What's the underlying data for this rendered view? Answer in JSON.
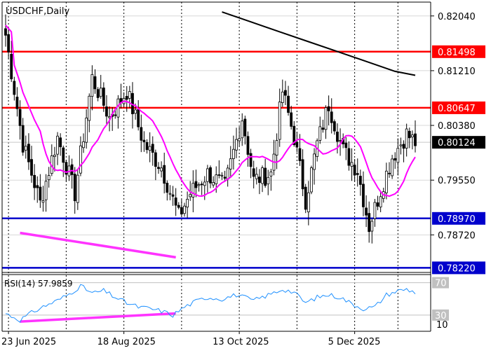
{
  "chart_data": [
    {
      "type": "candlestick",
      "title": "USDCHF,Daily",
      "colors": {
        "up": "#000000",
        "down": "#000000",
        "ma_slow": "#000000",
        "ma_fast": "#ff00ff",
        "resistance": "#ff0000",
        "support": "#0000cc",
        "divergence": "#ff33ff"
      },
      "y_range": [
        0.7815,
        0.8225
      ],
      "y_ticks": [
        "0.82040",
        "0.81210",
        "0.80380",
        "0.79550",
        "0.78720"
      ],
      "y_tick_values": [
        0.8204,
        0.8121,
        0.8038,
        0.7955,
        0.7872
      ],
      "x_tick_labels": [
        "23 Jun 2025",
        "18 Aug 2025",
        "13 Oct 2025",
        "5 Dec 2025"
      ],
      "x_tick_index": [
        1,
        41,
        81,
        121
      ],
      "bar_count": 143,
      "current_price": 0.80124,
      "current_price_label": "0.80124",
      "horizontal_levels": [
        {
          "value": 0.81498,
          "label": "0.81498",
          "color": "#ff0000"
        },
        {
          "value": 0.80647,
          "label": "0.80647",
          "color": "#ff0000"
        },
        {
          "value": 0.7897,
          "label": "0.78970",
          "color": "#0000cc"
        },
        {
          "value": 0.7822,
          "label": "0.78220",
          "color": "#0000cc"
        }
      ],
      "anchors": [
        [
          0,
          0.8175
        ],
        [
          6,
          0.801
        ],
        [
          12,
          0.792
        ],
        [
          18,
          0.802
        ],
        [
          24,
          0.7935
        ],
        [
          30,
          0.811
        ],
        [
          36,
          0.805
        ],
        [
          42,
          0.809
        ],
        [
          48,
          0.801
        ],
        [
          54,
          0.7975
        ],
        [
          60,
          0.79
        ],
        [
          64,
          0.7935
        ],
        [
          70,
          0.7965
        ],
        [
          76,
          0.7945
        ],
        [
          82,
          0.805
        ],
        [
          86,
          0.7955
        ],
        [
          92,
          0.7965
        ],
        [
          96,
          0.809
        ],
        [
          100,
          0.802
        ],
        [
          104,
          0.7925
        ],
        [
          108,
          0.801
        ],
        [
          112,
          0.807
        ],
        [
          117,
          0.8
        ],
        [
          122,
          0.797
        ],
        [
          126,
          0.7885
        ],
        [
          130,
          0.794
        ],
        [
          134,
          0.799
        ],
        [
          139,
          0.8025
        ],
        [
          142,
          0.8012
        ]
      ],
      "ma_slow": [
        [
          75,
          0.821
        ],
        [
          85,
          0.8195
        ],
        [
          95,
          0.818
        ],
        [
          105,
          0.8165
        ],
        [
          115,
          0.815
        ],
        [
          125,
          0.8135
        ],
        [
          135,
          0.812
        ],
        [
          142,
          0.8114
        ]
      ],
      "divergence_price": [
        [
          5,
          0.7875
        ],
        [
          59,
          0.7838
        ]
      ]
    },
    {
      "type": "line",
      "title": "RSI(14) 57.9859",
      "y_range": [
        10,
        80
      ],
      "levels": [
        {
          "value": 70,
          "label": "70"
        },
        {
          "value": 30,
          "label": "30"
        }
      ],
      "bottom_label": "10",
      "anchors": [
        [
          0,
          32
        ],
        [
          5,
          24
        ],
        [
          10,
          35
        ],
        [
          14,
          42
        ],
        [
          18,
          48
        ],
        [
          22,
          56
        ],
        [
          26,
          66
        ],
        [
          30,
          57
        ],
        [
          34,
          60
        ],
        [
          38,
          52
        ],
        [
          42,
          45
        ],
        [
          46,
          40
        ],
        [
          50,
          38
        ],
        [
          54,
          35
        ],
        [
          58,
          30
        ],
        [
          62,
          40
        ],
        [
          66,
          47
        ],
        [
          70,
          52
        ],
        [
          75,
          50
        ],
        [
          80,
          55
        ],
        [
          86,
          48
        ],
        [
          92,
          56
        ],
        [
          96,
          62
        ],
        [
          100,
          58
        ],
        [
          104,
          45
        ],
        [
          108,
          52
        ],
        [
          112,
          55
        ],
        [
          116,
          52
        ],
        [
          120,
          44
        ],
        [
          124,
          38
        ],
        [
          128,
          40
        ],
        [
          132,
          55
        ],
        [
          136,
          60
        ],
        [
          139,
          62
        ],
        [
          142,
          58
        ]
      ],
      "divergence": [
        [
          5,
          22
        ],
        [
          59,
          32
        ]
      ]
    }
  ]
}
